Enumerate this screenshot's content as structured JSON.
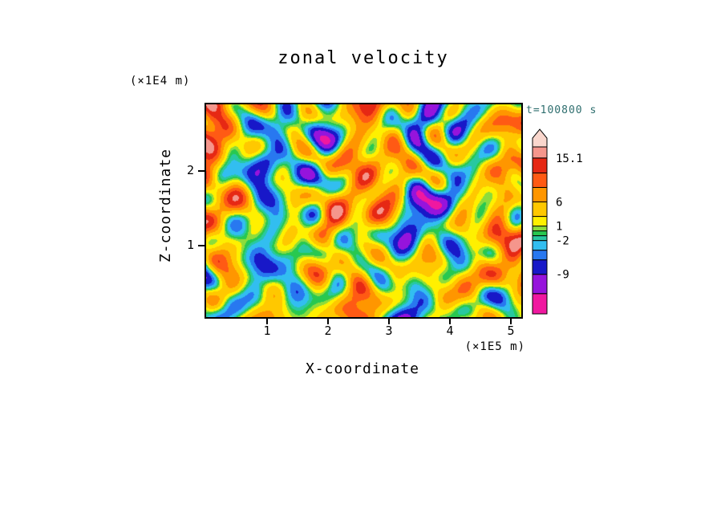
{
  "page": {
    "background": "#FFFFFF"
  },
  "chart_data": {
    "type": "heatmap",
    "title": "zonal velocity",
    "time_label": "t=100800 s",
    "xlabel": "X-coordinate",
    "zlabel": "Z-coordinate",
    "x_unit": "(×1E5 m)",
    "z_unit": "(×1E4 m)",
    "x_range": [
      0,
      5.17
    ],
    "z_range": [
      0,
      2.79
    ],
    "x_ticks": [
      "1",
      "2",
      "3",
      "4",
      "5"
    ],
    "z_ticks": [
      "1",
      "2"
    ],
    "grid": false,
    "legend_position": "right",
    "colorbar": {
      "vmin": -17.2,
      "vmax": 17.4,
      "arrow_color": "#FAD7CD",
      "levels": [
        {
          "min": -17.2,
          "max": -13,
          "color": "#F018A0"
        },
        {
          "min": -13,
          "max": -9,
          "color": "#9614DC"
        },
        {
          "min": -9,
          "max": -6,
          "color": "#1818C8"
        },
        {
          "min": -6,
          "max": -4,
          "color": "#2878F0"
        },
        {
          "min": -4,
          "max": -2,
          "color": "#32BEF0"
        },
        {
          "min": -2,
          "max": -1,
          "color": "#28C8A0"
        },
        {
          "min": -1,
          "max": 0,
          "color": "#28C850"
        },
        {
          "min": 0,
          "max": 1,
          "color": "#8CDC3C"
        },
        {
          "min": 1,
          "max": 3,
          "color": "#FFF000"
        },
        {
          "min": 3,
          "max": 6,
          "color": "#FFC800"
        },
        {
          "min": 6,
          "max": 9,
          "color": "#FF9600"
        },
        {
          "min": 9,
          "max": 12,
          "color": "#FF5A14"
        },
        {
          "min": 12,
          "max": 15.1,
          "color": "#E62814"
        },
        {
          "min": 15.1,
          "max": 17.4,
          "color": "#F5968C"
        }
      ],
      "labels": [
        {
          "text": "15.1",
          "value": 15.1
        },
        {
          "text": "6",
          "value": 6
        },
        {
          "text": "1",
          "value": 1
        },
        {
          "text": "-2",
          "value": -2
        },
        {
          "text": "-9",
          "value": -9
        }
      ]
    },
    "field": {
      "description": "turbulent zonal-velocity cross-section, values approx -17 to +17",
      "seed": 12,
      "harmonics": 64,
      "max_fx": 9,
      "max_fy": 6,
      "mean": 1.8,
      "std": 5.5
    }
  }
}
